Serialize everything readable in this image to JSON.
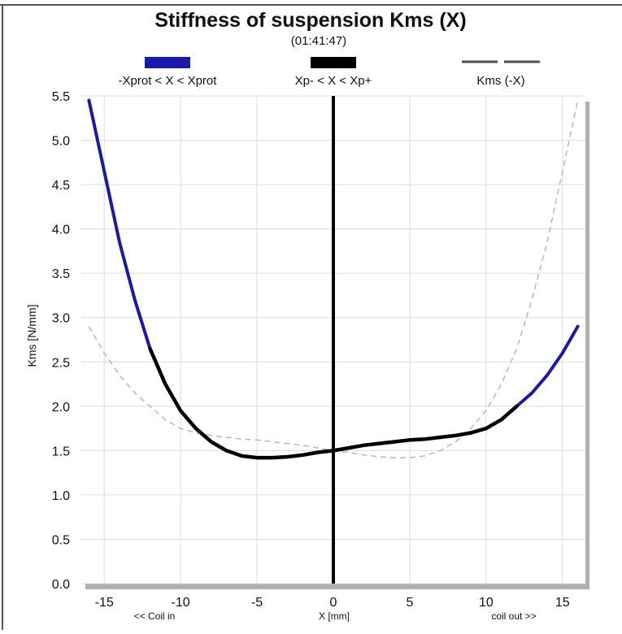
{
  "chart_data": {
    "type": "line",
    "title": "Stiffness of suspension Kms (X)",
    "subtitle": "(01:41:47)",
    "xlabel": "X [mm]",
    "ylabel": "Kms [N/mm]",
    "x_left_note": "<< Coil in",
    "x_right_note": "coil out >>",
    "xlim": [
      -16.5,
      16.5
    ],
    "ylim": [
      0,
      5.5
    ],
    "xticks": [
      -15,
      -10,
      -5,
      0,
      5,
      10,
      15
    ],
    "yticks": [
      0.0,
      0.5,
      1.0,
      1.5,
      2.0,
      2.5,
      3.0,
      3.5,
      4.0,
      4.5,
      5.0,
      5.5
    ],
    "grid": true,
    "legend": [
      {
        "label": "-Xprot < X < Xprot",
        "color": "#1a1aa6",
        "style": "solid"
      },
      {
        "label": "Xp- < X < Xp+",
        "color": "#000000",
        "style": "solid"
      },
      {
        "label": "Kms (-X)",
        "color": "#5a4a48",
        "style": "dashed"
      }
    ],
    "vline_x": 0,
    "series": [
      {
        "name": "-Xprot < X < Xprot",
        "color": "#1a1aa6",
        "x": [
          -16,
          -15,
          -14,
          -13,
          -12,
          -11,
          -10,
          -9,
          -8,
          -7,
          -6,
          -5,
          -4,
          -3,
          -2,
          -1,
          0,
          1,
          2,
          3,
          4,
          5,
          6,
          7,
          8,
          9,
          10,
          11,
          12,
          13,
          14,
          15,
          16
        ],
        "y": [
          5.45,
          4.65,
          3.85,
          3.2,
          2.65,
          2.25,
          1.95,
          1.75,
          1.6,
          1.5,
          1.44,
          1.42,
          1.42,
          1.43,
          1.45,
          1.48,
          1.5,
          1.53,
          1.56,
          1.58,
          1.6,
          1.62,
          1.63,
          1.65,
          1.67,
          1.7,
          1.75,
          1.85,
          2.0,
          2.15,
          2.35,
          2.6,
          2.9
        ]
      },
      {
        "name": "Xp- < X < Xp+",
        "color": "#000000",
        "x": [
          -12,
          -11,
          -10,
          -9,
          -8,
          -7,
          -6,
          -5,
          -4,
          -3,
          -2,
          -1,
          0,
          1,
          2,
          3,
          4,
          5,
          6,
          7,
          8,
          9,
          10,
          11,
          12
        ],
        "y": [
          2.65,
          2.25,
          1.95,
          1.75,
          1.6,
          1.5,
          1.44,
          1.42,
          1.42,
          1.43,
          1.45,
          1.48,
          1.5,
          1.53,
          1.56,
          1.58,
          1.6,
          1.62,
          1.63,
          1.65,
          1.67,
          1.7,
          1.75,
          1.85,
          2.0
        ]
      },
      {
        "name": "Kms (-X)",
        "color": "#b8b8b8",
        "x": [
          -16,
          -15,
          -14,
          -13,
          -12,
          -11,
          -10,
          -9,
          -8,
          -7,
          -6,
          -5,
          -4,
          -3,
          -2,
          -1,
          0,
          1,
          2,
          3,
          4,
          5,
          6,
          7,
          8,
          9,
          10,
          11,
          12,
          13,
          14,
          15,
          16
        ],
        "y": [
          2.9,
          2.6,
          2.35,
          2.15,
          2.0,
          1.85,
          1.75,
          1.7,
          1.67,
          1.65,
          1.63,
          1.62,
          1.6,
          1.58,
          1.56,
          1.53,
          1.5,
          1.48,
          1.45,
          1.43,
          1.42,
          1.42,
          1.44,
          1.5,
          1.6,
          1.75,
          1.95,
          2.25,
          2.65,
          3.2,
          3.85,
          4.65,
          5.45
        ]
      }
    ]
  }
}
